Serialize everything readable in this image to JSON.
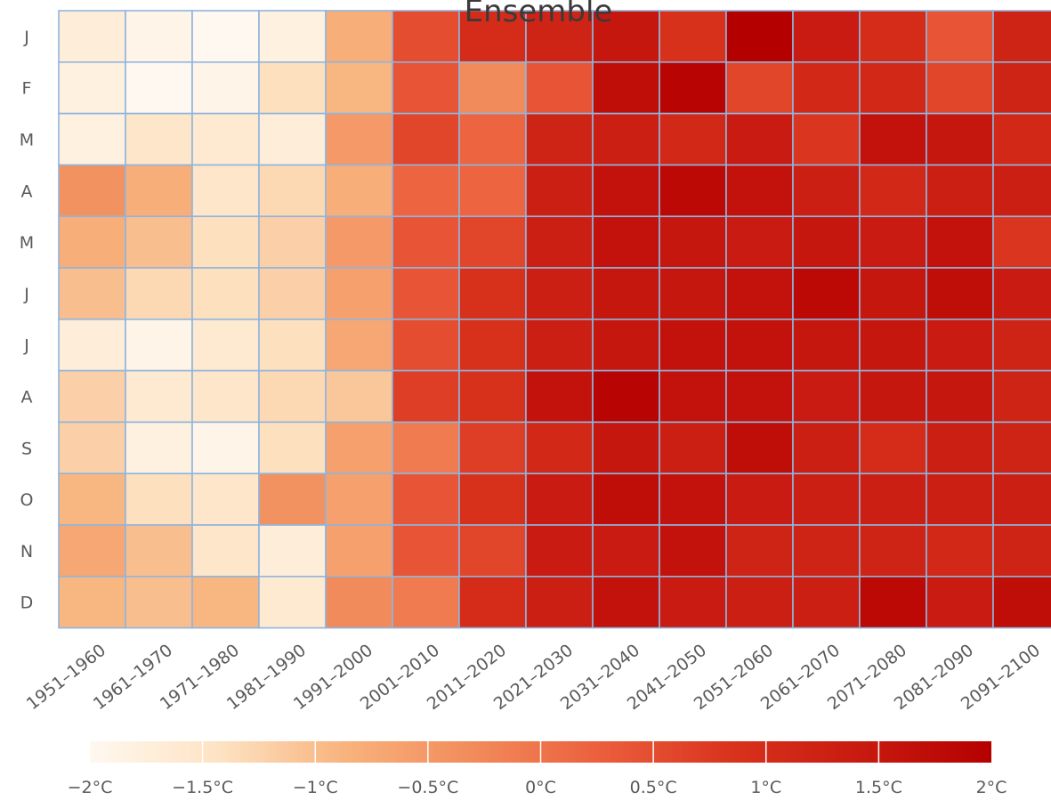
{
  "chart_data": {
    "type": "heatmap",
    "title": "Ensemble",
    "xlabel": "",
    "ylabel": "",
    "x_categories": [
      "1951–1960",
      "1961–1970",
      "1971–1980",
      "1981–1990",
      "1991–2000",
      "2001–2010",
      "2011–2020",
      "2021–2030",
      "2031–2040",
      "2041–2050",
      "2051–2060",
      "2061–2070",
      "2071–2080",
      "2081–2090",
      "2091–2100"
    ],
    "y_categories": [
      "J",
      "F",
      "M",
      "A",
      "M",
      "J",
      "J",
      "A",
      "S",
      "O",
      "N",
      "D"
    ],
    "values": [
      [
        -1.7,
        -1.9,
        -2.0,
        -1.8,
        -0.8,
        0.5,
        1.0,
        1.2,
        1.5,
        0.9,
        2.0,
        1.4,
        1.0,
        0.4,
        1.2
      ],
      [
        -1.8,
        -2.0,
        -1.9,
        -1.4,
        -0.9,
        0.4,
        -0.3,
        0.4,
        1.7,
        1.9,
        0.6,
        1.1,
        1.1,
        0.6,
        1.2
      ],
      [
        -1.8,
        -1.5,
        -1.6,
        -1.7,
        -0.5,
        0.6,
        0.2,
        1.2,
        1.3,
        1.1,
        1.4,
        0.8,
        1.6,
        1.5,
        1.1
      ],
      [
        -0.4,
        -0.8,
        -1.5,
        -1.3,
        -0.8,
        0.2,
        0.2,
        1.3,
        1.6,
        1.8,
        1.6,
        1.3,
        1.1,
        1.3,
        1.3
      ],
      [
        -0.8,
        -1.0,
        -1.4,
        -1.2,
        -0.5,
        0.4,
        0.6,
        1.3,
        1.6,
        1.5,
        1.4,
        1.5,
        1.4,
        1.6,
        0.8
      ],
      [
        -1.0,
        -1.3,
        -1.4,
        -1.2,
        -0.6,
        0.4,
        0.9,
        1.3,
        1.5,
        1.5,
        1.6,
        1.8,
        1.5,
        1.7,
        1.4
      ],
      [
        -1.7,
        -1.9,
        -1.6,
        -1.4,
        -0.7,
        0.5,
        0.9,
        1.3,
        1.5,
        1.6,
        1.6,
        1.5,
        1.5,
        1.4,
        1.2
      ],
      [
        -1.2,
        -1.6,
        -1.5,
        -1.3,
        -1.1,
        0.7,
        0.9,
        1.6,
        1.9,
        1.6,
        1.6,
        1.4,
        1.5,
        1.5,
        1.2
      ],
      [
        -1.2,
        -1.8,
        -1.9,
        -1.4,
        -0.6,
        -0.1,
        0.7,
        1.1,
        1.5,
        1.3,
        1.7,
        1.3,
        1.0,
        1.3,
        1.2
      ],
      [
        -0.9,
        -1.4,
        -1.5,
        -0.4,
        -0.6,
        0.4,
        0.9,
        1.4,
        1.7,
        1.6,
        1.4,
        1.3,
        1.3,
        1.3,
        1.3
      ],
      [
        -0.7,
        -1.0,
        -1.5,
        -1.7,
        -0.6,
        0.4,
        0.6,
        1.4,
        1.4,
        1.6,
        1.2,
        1.2,
        1.2,
        1.1,
        1.2
      ],
      [
        -0.9,
        -1.0,
        -0.9,
        -1.6,
        -0.3,
        -0.1,
        1.0,
        1.3,
        1.6,
        1.4,
        1.3,
        1.3,
        1.8,
        1.4,
        1.7
      ]
    ],
    "color_scale": {
      "min": -2,
      "max": 2,
      "colors": [
        "#fff8f0",
        "#fde3c3",
        "#f8b27c",
        "#f28a5a",
        "#eb5d3c",
        "#d8321c",
        "#c81a10",
        "#b50000"
      ],
      "tick_labels": [
        "−2°C",
        "−1.5°C",
        "−1°C",
        "−0.5°C",
        "0°C",
        "0.5°C",
        "1°C",
        "1.5°C",
        "2°C"
      ]
    },
    "grid_color": "#8fb5de",
    "legend": "bottom"
  }
}
